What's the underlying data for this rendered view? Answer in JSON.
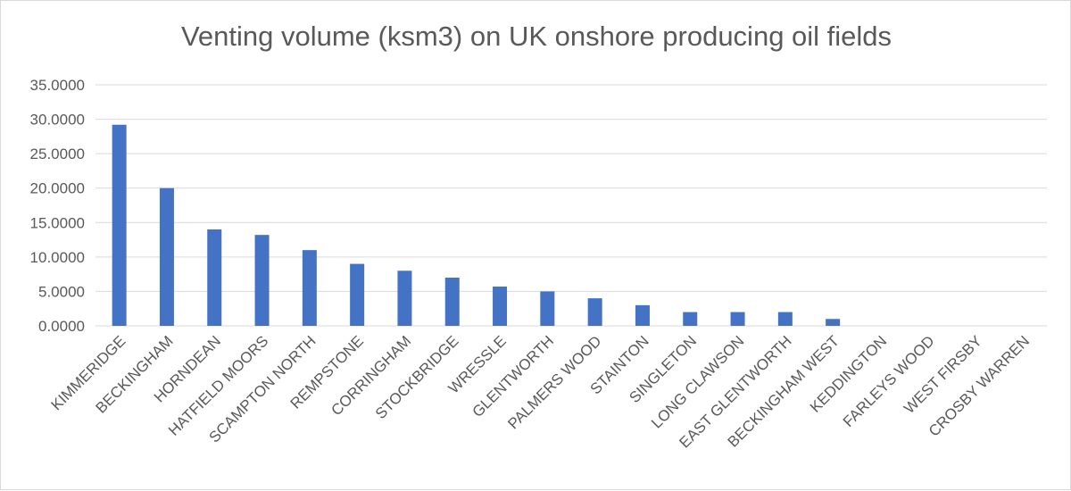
{
  "chart_data": {
    "type": "bar",
    "title": "Venting volume (ksm3) on UK onshore producing oil fields",
    "xlabel": "",
    "ylabel": "",
    "ylim": [
      0,
      35
    ],
    "yticks": [
      0,
      5,
      10,
      15,
      20,
      25,
      30,
      35
    ],
    "ytick_labels": [
      "0.0000",
      "5.0000",
      "10.0000",
      "15.0000",
      "20.0000",
      "25.0000",
      "30.0000",
      "35.0000"
    ],
    "grid": true,
    "legend": "none",
    "bar_color": "#4472c4",
    "categories": [
      "KIMMERIDGE",
      "BECKINGHAM",
      "HORNDEAN",
      "HATFIELD MOORS",
      "SCAMPTON NORTH",
      "REMPSTONE",
      "CORRINGHAM",
      "STOCKBRIDGE",
      "WRESSLE",
      "GLENTWORTH",
      "PALMERS WOOD",
      "STAINTON",
      "SINGLETON",
      "LONG CLAWSON",
      "EAST GLENTWORTH",
      "BECKINGHAM WEST",
      "KEDDINGTON",
      "FARLEYS WOOD",
      "WEST FIRSBY",
      "CROSBY WARREN"
    ],
    "values": [
      29.2,
      20.0,
      14.0,
      13.2,
      11.0,
      9.0,
      8.0,
      7.0,
      5.7,
      5.0,
      4.0,
      3.0,
      2.0,
      2.0,
      2.0,
      1.0,
      0,
      0,
      0,
      0
    ]
  }
}
